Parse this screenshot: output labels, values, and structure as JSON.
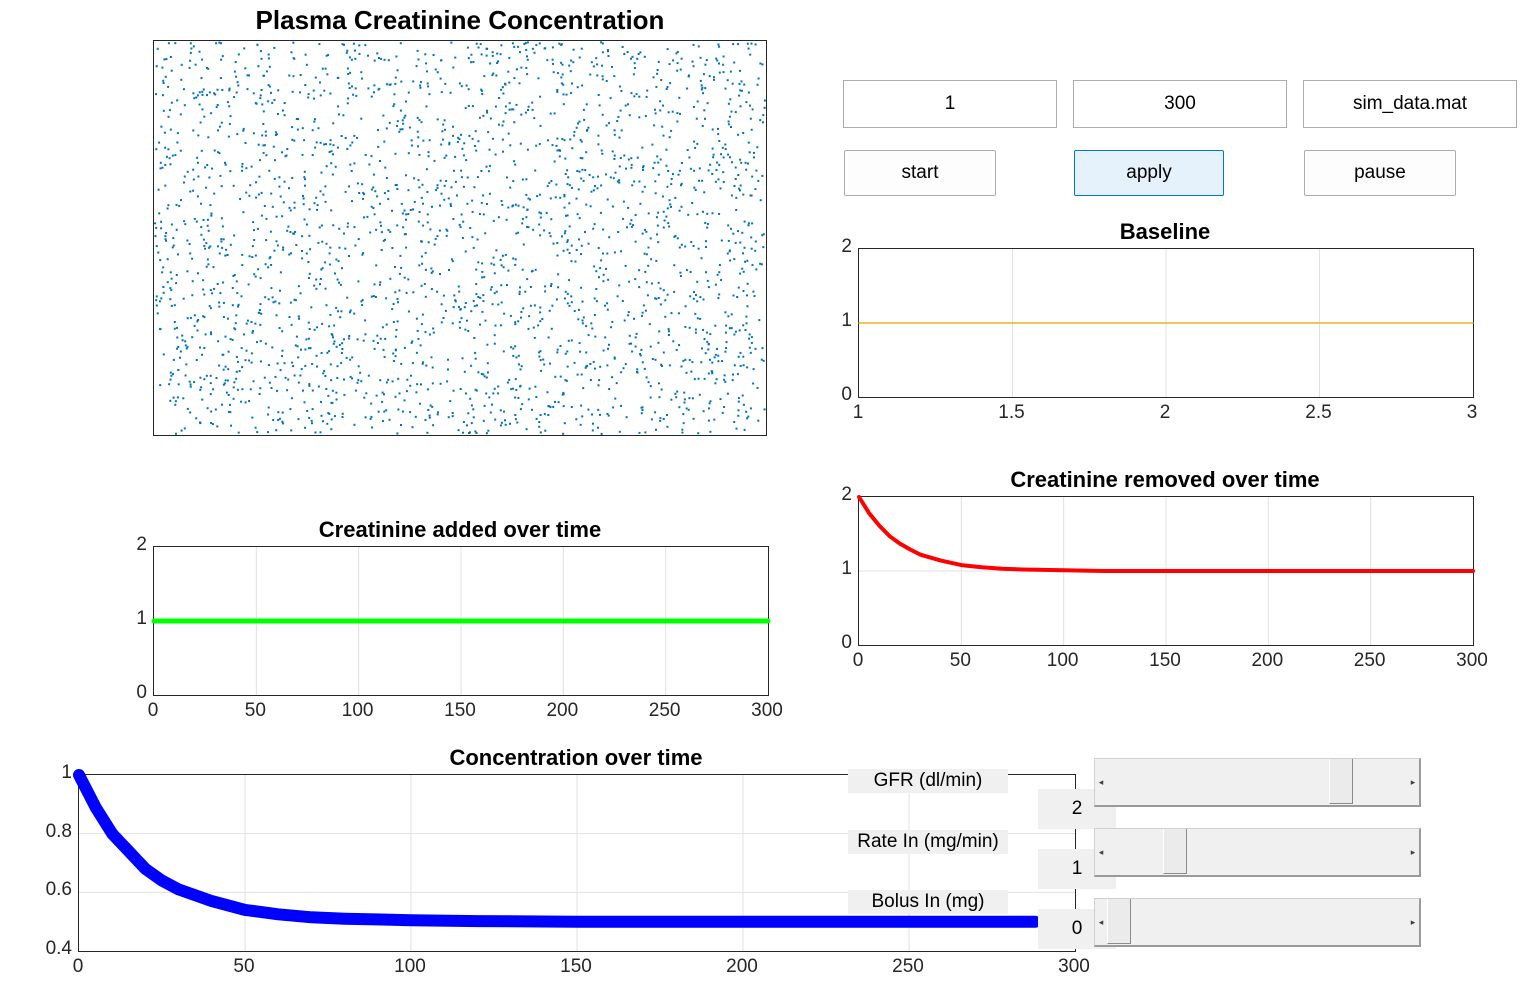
{
  "colors": {
    "scatter": "#0072bd",
    "baseline": "#edb120",
    "added": "#00ff00",
    "removed": "#ff0000",
    "concentration": "#0000ff",
    "grid": "#e0e0e0"
  },
  "controls": {
    "edit_start": "1",
    "edit_end": "300",
    "edit_file": "sim_data.mat",
    "start_label": "start",
    "apply_label": "apply",
    "pause_label": "pause"
  },
  "sliders": [
    {
      "label": "GFR (dl/min)",
      "value": "2",
      "fraction": 0.8
    },
    {
      "label": "Rate In (mg/min)",
      "value": "1",
      "fraction": 0.2
    },
    {
      "label": "Bolus In (mg)",
      "value": "0",
      "fraction": 0.0
    }
  ],
  "chart_data": [
    {
      "id": "scatter",
      "type": "scatter",
      "title": "Plasma Creatinine Concentration",
      "point_count": 2500,
      "axes_visible": false
    },
    {
      "id": "baseline",
      "type": "line",
      "title": "Baseline",
      "xlim": [
        1,
        3
      ],
      "ylim": [
        0,
        2
      ],
      "xticks": [
        "1",
        "1.5",
        "2",
        "2.5",
        "3"
      ],
      "yticks": [
        "0",
        "1",
        "2"
      ],
      "series": [
        {
          "x": [
            1,
            3
          ],
          "y": [
            1,
            1
          ]
        }
      ],
      "grid": true
    },
    {
      "id": "added",
      "type": "line",
      "title": "Creatinine added over time",
      "xlim": [
        0,
        300
      ],
      "ylim": [
        0,
        2
      ],
      "xticks": [
        "0",
        "50",
        "100",
        "150",
        "200",
        "250",
        "300"
      ],
      "yticks": [
        "0",
        "1",
        "2"
      ],
      "series": [
        {
          "x": [
            0,
            300
          ],
          "y": [
            1,
            1
          ]
        }
      ],
      "grid": true
    },
    {
      "id": "removed",
      "type": "line",
      "title": "Creatinine removed over time",
      "xlim": [
        0,
        300
      ],
      "ylim": [
        0,
        2
      ],
      "xticks": [
        "0",
        "50",
        "100",
        "150",
        "200",
        "250",
        "300"
      ],
      "yticks": [
        "0",
        "1",
        "2"
      ],
      "series": [
        {
          "x": [
            0,
            5,
            10,
            15,
            20,
            25,
            30,
            40,
            50,
            60,
            70,
            80,
            100,
            120,
            150,
            200,
            250,
            300
          ],
          "y": [
            2,
            1.78,
            1.61,
            1.47,
            1.37,
            1.29,
            1.22,
            1.14,
            1.08,
            1.05,
            1.03,
            1.02,
            1.01,
            1.0,
            1.0,
            1.0,
            1.0,
            1.0
          ]
        }
      ],
      "grid": true
    },
    {
      "id": "concentration",
      "type": "line",
      "title": "Concentration over time",
      "xlim": [
        0,
        300
      ],
      "ylim": [
        0.4,
        1
      ],
      "xticks": [
        "0",
        "50",
        "100",
        "150",
        "200",
        "250",
        "300"
      ],
      "yticks": [
        "0.4",
        "0.6",
        "0.8",
        "1"
      ],
      "series": [
        {
          "x": [
            0,
            5,
            10,
            15,
            20,
            25,
            30,
            40,
            50,
            60,
            70,
            80,
            100,
            120,
            150,
            200,
            250,
            288
          ],
          "y": [
            1,
            0.89,
            0.8,
            0.74,
            0.68,
            0.64,
            0.61,
            0.57,
            0.54,
            0.525,
            0.515,
            0.51,
            0.505,
            0.502,
            0.5,
            0.5,
            0.5,
            0.5
          ]
        }
      ],
      "grid": true
    }
  ]
}
